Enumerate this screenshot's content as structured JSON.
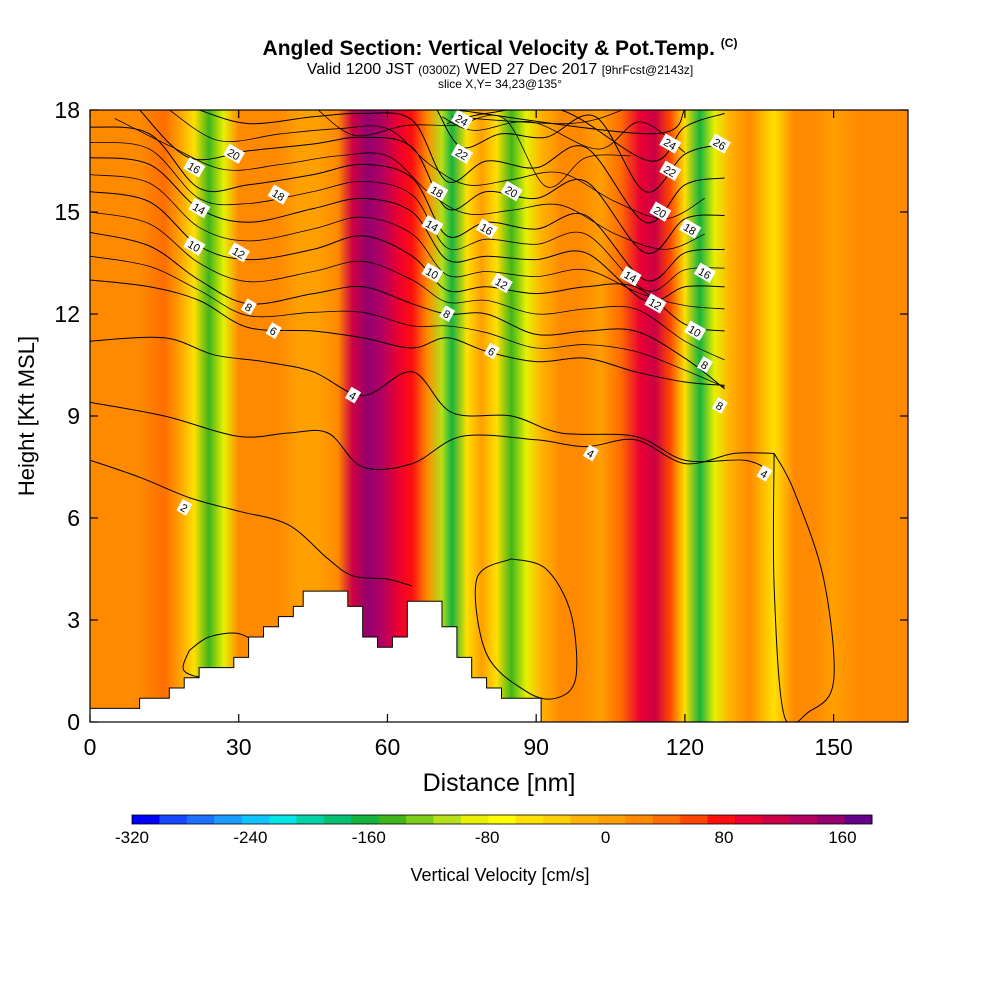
{
  "title": {
    "main": "Angled Section: Vertical Velocity & Pot.Temp.",
    "main_tag": "(C)",
    "valid_prefix": "Valid 1200 JST",
    "valid_small": "(0300Z)",
    "valid_date": "WED 27 Dec 2017",
    "valid_fcst": "[9hrFcst@2143z]",
    "slice": "slice X,Y= 34,23@135°"
  },
  "chart_data": {
    "type": "heatmap",
    "xlabel": "Distance [nm]",
    "ylabel": "Height [Kft MSL]",
    "xlim": [
      0,
      165
    ],
    "ylim": [
      0,
      18
    ],
    "x_ticks": [
      0,
      30,
      60,
      90,
      120,
      150
    ],
    "y_ticks": [
      0,
      3,
      6,
      9,
      12,
      15,
      18
    ],
    "grid": false,
    "colorbar": {
      "label": "Vertical Velocity [cm/s]",
      "ticks": [
        -320,
        -240,
        -160,
        -80,
        0,
        80,
        160
      ],
      "range": [
        -320,
        180
      ],
      "colors": [
        "#0000ff",
        "#1447ff",
        "#1d70ff",
        "#1a9cff",
        "#10c5ff",
        "#00e5e5",
        "#00d2a5",
        "#05c070",
        "#16b33e",
        "#40b51a",
        "#7ccd1a",
        "#b5e01a",
        "#e8f000",
        "#ffff00",
        "#ffe000",
        "#ffd000",
        "#ffb300",
        "#ff9f00",
        "#ff8a00",
        "#ff6d00",
        "#ff4600",
        "#ff0f0f",
        "#e80033",
        "#cc0045",
        "#b30060",
        "#94006e",
        "#660088"
      ]
    },
    "columns": [
      {
        "x": 5,
        "v": 20
      },
      {
        "x": 10,
        "v": 28
      },
      {
        "x": 15,
        "v": 50
      },
      {
        "x": 18,
        "v": 5
      },
      {
        "x": 21,
        "v": -60
      },
      {
        "x": 24,
        "v": -150
      },
      {
        "x": 27,
        "v": -90
      },
      {
        "x": 30,
        "v": 30
      },
      {
        "x": 34,
        "v": 15
      },
      {
        "x": 38,
        "v": 25
      },
      {
        "x": 42,
        "v": 10
      },
      {
        "x": 46,
        "v": 0
      },
      {
        "x": 50,
        "v": 30
      },
      {
        "x": 53,
        "v": 110
      },
      {
        "x": 56,
        "v": 150
      },
      {
        "x": 59,
        "v": 130
      },
      {
        "x": 62,
        "v": 100
      },
      {
        "x": 65,
        "v": 80
      },
      {
        "x": 68,
        "v": 20
      },
      {
        "x": 71,
        "v": -110
      },
      {
        "x": 73,
        "v": -160
      },
      {
        "x": 76,
        "v": -60
      },
      {
        "x": 79,
        "v": 0
      },
      {
        "x": 82,
        "v": -60
      },
      {
        "x": 85,
        "v": -140
      },
      {
        "x": 88,
        "v": -90
      },
      {
        "x": 91,
        "v": -20
      },
      {
        "x": 95,
        "v": 15
      },
      {
        "x": 99,
        "v": 30
      },
      {
        "x": 103,
        "v": 10
      },
      {
        "x": 107,
        "v": 40
      },
      {
        "x": 111,
        "v": 90
      },
      {
        "x": 114,
        "v": 120
      },
      {
        "x": 117,
        "v": 60
      },
      {
        "x": 120,
        "v": -60
      },
      {
        "x": 123,
        "v": -170
      },
      {
        "x": 126,
        "v": -90
      },
      {
        "x": 129,
        "v": -10
      },
      {
        "x": 133,
        "v": 20
      },
      {
        "x": 138,
        "v": -60
      },
      {
        "x": 142,
        "v": 15
      },
      {
        "x": 146,
        "v": 25
      },
      {
        "x": 150,
        "v": 10
      },
      {
        "x": 155,
        "v": 20
      },
      {
        "x": 160,
        "v": 30
      },
      {
        "x": 165,
        "v": 25
      }
    ],
    "terrain": [
      [
        0,
        0.4
      ],
      [
        10,
        0.4
      ],
      [
        10,
        0.7
      ],
      [
        15,
        0.7
      ],
      [
        15,
        0.7
      ],
      [
        16,
        0.7
      ],
      [
        16,
        1.0
      ],
      [
        19,
        1.0
      ],
      [
        19,
        1.3
      ],
      [
        22,
        1.3
      ],
      [
        22,
        1.6
      ],
      [
        25,
        1.6
      ],
      [
        25,
        1.6
      ],
      [
        29,
        1.6
      ],
      [
        29,
        1.9
      ],
      [
        32,
        1.9
      ],
      [
        32,
        2.5
      ],
      [
        35,
        2.5
      ],
      [
        35,
        2.8
      ],
      [
        38,
        2.8
      ],
      [
        38,
        3.1
      ],
      [
        41,
        3.1
      ],
      [
        41,
        3.4
      ],
      [
        43,
        3.4
      ],
      [
        43,
        3.85
      ],
      [
        52,
        3.85
      ],
      [
        52,
        3.4
      ],
      [
        55,
        3.4
      ],
      [
        55,
        2.5
      ],
      [
        58,
        2.5
      ],
      [
        58,
        2.2
      ],
      [
        61,
        2.2
      ],
      [
        61,
        2.5
      ],
      [
        64,
        2.5
      ],
      [
        64,
        3.55
      ],
      [
        71,
        3.55
      ],
      [
        71,
        2.8
      ],
      [
        74,
        2.8
      ],
      [
        74,
        1.9
      ],
      [
        77,
        1.9
      ],
      [
        77,
        1.3
      ],
      [
        80,
        1.3
      ],
      [
        80,
        1.0
      ],
      [
        83,
        1.0
      ],
      [
        83,
        0.7
      ],
      [
        91,
        0.7
      ],
      [
        91,
        0.0
      ]
    ],
    "theta_contours": [
      {
        "level": 2,
        "points": [
          [
            0,
            7.7
          ],
          [
            10,
            7.2
          ],
          [
            20,
            6.6
          ],
          [
            30,
            6.2
          ],
          [
            40,
            5.8
          ],
          [
            48,
            4.8
          ],
          [
            53,
            4.3
          ],
          [
            60,
            4.2
          ],
          [
            65,
            4.0
          ]
        ]
      },
      {
        "level": 3,
        "points": [
          [
            0,
            9.4
          ],
          [
            15,
            9.0
          ],
          [
            30,
            8.4
          ],
          [
            40,
            8.5
          ],
          [
            48,
            8.5
          ],
          [
            55,
            7.5
          ],
          [
            65,
            7.6
          ],
          [
            75,
            8.4
          ],
          [
            90,
            8.3
          ],
          [
            100,
            8.1
          ],
          [
            110,
            8.3
          ],
          [
            120,
            7.6
          ],
          [
            130,
            7.9
          ],
          [
            138,
            7.9
          ]
        ]
      },
      {
        "level": 4,
        "points": [
          [
            0,
            11.2
          ],
          [
            15,
            11.3
          ],
          [
            25,
            10.8
          ],
          [
            35,
            10.6
          ],
          [
            45,
            10.3
          ],
          [
            55,
            9.6
          ],
          [
            65,
            10.3
          ],
          [
            73,
            9.1
          ],
          [
            85,
            9.0
          ],
          [
            95,
            8.5
          ],
          [
            110,
            8.4
          ],
          [
            120,
            7.7
          ],
          [
            132,
            7.7
          ],
          [
            137,
            7.4
          ]
        ]
      },
      {
        "level": 6,
        "points": [
          [
            0,
            13.0
          ],
          [
            12,
            12.8
          ],
          [
            22,
            12.4
          ],
          [
            32,
            11.6
          ],
          [
            45,
            11.5
          ],
          [
            55,
            11.3
          ],
          [
            65,
            11.0
          ],
          [
            72,
            11.3
          ],
          [
            80,
            10.9
          ],
          [
            90,
            10.6
          ],
          [
            100,
            10.7
          ],
          [
            110,
            10.3
          ],
          [
            120,
            10.0
          ],
          [
            128,
            9.9
          ]
        ]
      },
      {
        "level": 8,
        "points": [
          [
            0,
            14.4
          ],
          [
            12,
            14.0
          ],
          [
            22,
            13.0
          ],
          [
            32,
            12.3
          ],
          [
            45,
            12.6
          ],
          [
            55,
            12.8
          ],
          [
            65,
            12.3
          ],
          [
            72,
            12.0
          ],
          [
            80,
            12.0
          ],
          [
            90,
            11.4
          ],
          [
            100,
            11.5
          ],
          [
            110,
            11.5
          ],
          [
            120,
            10.7
          ],
          [
            128,
            9.8
          ]
        ]
      },
      {
        "level": 10,
        "points": [
          [
            0,
            15.6
          ],
          [
            12,
            15.3
          ],
          [
            22,
            14.0
          ],
          [
            32,
            13.6
          ],
          [
            45,
            13.9
          ],
          [
            55,
            14.3
          ],
          [
            65,
            13.7
          ],
          [
            72,
            12.7
          ],
          [
            80,
            12.8
          ],
          [
            90,
            12.6
          ],
          [
            100,
            12.8
          ],
          [
            110,
            12.8
          ],
          [
            120,
            11.7
          ],
          [
            128,
            11.5
          ]
        ]
      },
      {
        "level": 12,
        "points": [
          [
            0,
            16.6
          ],
          [
            12,
            16.4
          ],
          [
            22,
            15.1
          ],
          [
            32,
            14.7
          ],
          [
            45,
            15.1
          ],
          [
            55,
            15.4
          ],
          [
            65,
            15.0
          ],
          [
            72,
            13.6
          ],
          [
            80,
            13.7
          ],
          [
            90,
            13.6
          ],
          [
            100,
            13.8
          ],
          [
            112,
            12.4
          ],
          [
            120,
            12.8
          ],
          [
            128,
            12.8
          ]
        ]
      },
      {
        "level": 14,
        "points": [
          [
            0,
            17.5
          ],
          [
            12,
            17.3
          ],
          [
            22,
            15.7
          ],
          [
            32,
            15.8
          ],
          [
            45,
            16.1
          ],
          [
            55,
            16.4
          ],
          [
            65,
            16.0
          ],
          [
            72,
            14.3
          ],
          [
            80,
            14.7
          ],
          [
            90,
            14.5
          ],
          [
            100,
            14.9
          ],
          [
            112,
            13.0
          ],
          [
            120,
            13.8
          ],
          [
            128,
            13.9
          ]
        ]
      },
      {
        "level": 16,
        "points": [
          [
            10,
            18.0
          ],
          [
            20,
            16.6
          ],
          [
            32,
            16.8
          ],
          [
            45,
            17.0
          ],
          [
            55,
            17.2
          ],
          [
            65,
            16.9
          ],
          [
            72,
            15.1
          ],
          [
            80,
            15.6
          ],
          [
            90,
            15.4
          ],
          [
            100,
            15.9
          ],
          [
            112,
            13.8
          ],
          [
            120,
            14.8
          ],
          [
            128,
            14.9
          ]
        ]
      },
      {
        "level": 18,
        "points": [
          [
            22,
            18.0
          ],
          [
            32,
            17.6
          ],
          [
            45,
            17.8
          ],
          [
            55,
            17.9
          ],
          [
            65,
            17.7
          ],
          [
            72,
            15.9
          ],
          [
            80,
            16.5
          ],
          [
            90,
            16.3
          ],
          [
            100,
            16.9
          ],
          [
            112,
            14.7
          ],
          [
            120,
            15.8
          ],
          [
            128,
            16.0
          ]
        ]
      },
      {
        "level": 20,
        "points": [
          [
            70,
            18.0
          ],
          [
            75,
            16.9
          ],
          [
            83,
            17.3
          ],
          [
            92,
            17.2
          ],
          [
            102,
            17.8
          ],
          [
            112,
            15.6
          ],
          [
            120,
            16.7
          ],
          [
            128,
            17.0
          ]
        ]
      },
      {
        "level": 22,
        "points": [
          [
            72,
            17.6
          ],
          [
            80,
            17.9
          ],
          [
            95,
            18.0
          ],
          [
            113,
            16.5
          ],
          [
            120,
            17.5
          ],
          [
            128,
            17.9
          ]
        ]
      },
      {
        "level": 24,
        "points": [
          [
            74,
            18.0
          ],
          [
            113,
            17.3
          ],
          [
            120,
            18.0
          ]
        ]
      }
    ],
    "theta_closed_contours": [
      {
        "level": 4,
        "points": [
          [
            85,
            4.8
          ],
          [
            92,
            4.5
          ],
          [
            97,
            3.2
          ],
          [
            98,
            1.3
          ],
          [
            94,
            0.7
          ],
          [
            88,
            0.9
          ],
          [
            80,
            2.0
          ],
          [
            78,
            4.2
          ],
          [
            85,
            4.8
          ]
        ]
      },
      {
        "level": 4,
        "points": [
          [
            138,
            7.9
          ],
          [
            142,
            6.8
          ],
          [
            148,
            4.2
          ],
          [
            150,
            1.2
          ],
          [
            145,
            0.3
          ],
          [
            140,
            0.2
          ],
          [
            138,
            4.0
          ],
          [
            138,
            7.9
          ]
        ]
      },
      {
        "level": 2,
        "points": [
          [
            20,
            2.1
          ],
          [
            24,
            2.5
          ],
          [
            30,
            2.6
          ],
          [
            34,
            2.2
          ],
          [
            35,
            1.6
          ],
          [
            25,
            1.3
          ],
          [
            19,
            1.5
          ],
          [
            20,
            2.1
          ]
        ]
      }
    ],
    "contour_labels": [
      {
        "x": 75,
        "y": 17.7,
        "text": "24"
      },
      {
        "x": 75,
        "y": 16.7,
        "text": "22"
      },
      {
        "x": 29,
        "y": 16.7,
        "text": "20"
      },
      {
        "x": 21,
        "y": 16.3,
        "text": "16"
      },
      {
        "x": 38,
        "y": 15.5,
        "text": "18"
      },
      {
        "x": 70,
        "y": 15.6,
        "text": "18"
      },
      {
        "x": 85,
        "y": 15.6,
        "text": "20"
      },
      {
        "x": 22,
        "y": 15.1,
        "text": "14"
      },
      {
        "x": 69,
        "y": 14.6,
        "text": "14"
      },
      {
        "x": 80,
        "y": 14.5,
        "text": "16"
      },
      {
        "x": 21,
        "y": 14.0,
        "text": "10"
      },
      {
        "x": 30,
        "y": 13.8,
        "text": "12"
      },
      {
        "x": 69,
        "y": 13.2,
        "text": "10"
      },
      {
        "x": 83,
        "y": 12.9,
        "text": "12"
      },
      {
        "x": 32,
        "y": 12.2,
        "text": "8"
      },
      {
        "x": 72,
        "y": 12.0,
        "text": "8"
      },
      {
        "x": 37,
        "y": 11.5,
        "text": "6"
      },
      {
        "x": 81,
        "y": 10.9,
        "text": "6"
      },
      {
        "x": 53,
        "y": 9.6,
        "text": "4"
      },
      {
        "x": 101,
        "y": 7.9,
        "text": "4"
      },
      {
        "x": 136,
        "y": 7.3,
        "text": "4"
      },
      {
        "x": 19,
        "y": 6.3,
        "text": "2"
      },
      {
        "x": 109,
        "y": 13.1,
        "text": "14"
      },
      {
        "x": 114,
        "y": 12.3,
        "text": "12"
      },
      {
        "x": 115,
        "y": 15.0,
        "text": "20"
      },
      {
        "x": 117,
        "y": 16.2,
        "text": "22"
      },
      {
        "x": 117,
        "y": 17.0,
        "text": "24"
      },
      {
        "x": 127,
        "y": 17.0,
        "text": "26"
      },
      {
        "x": 121,
        "y": 14.5,
        "text": "18"
      },
      {
        "x": 124,
        "y": 13.2,
        "text": "16"
      },
      {
        "x": 122,
        "y": 11.5,
        "text": "10"
      },
      {
        "x": 124,
        "y": 10.5,
        "text": "8"
      },
      {
        "x": 127,
        "y": 9.3,
        "text": "8"
      }
    ]
  }
}
